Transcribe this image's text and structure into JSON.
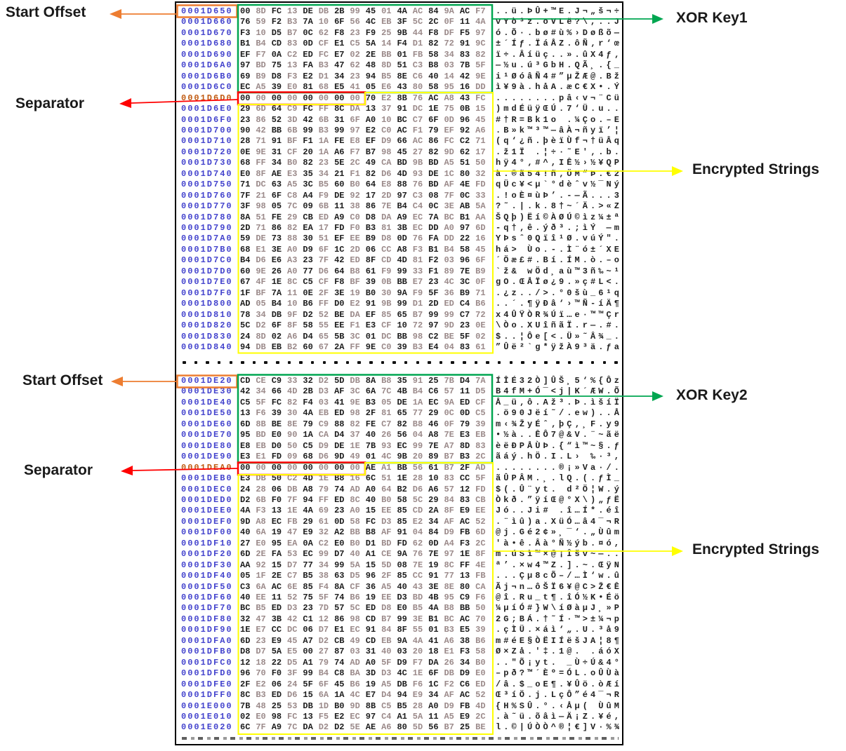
{
  "labels": {
    "start_offset_1": "Start Offset",
    "xor_key_1": "XOR Key1",
    "separator_1": "Separator",
    "encrypted_strings_1": "Encrypted Strings",
    "start_offset_2": "Start Offset",
    "xor_key_2": "XOR Key2",
    "separator_2": "Separator",
    "encrypted_strings_2": "Encrypted Strings"
  },
  "colors": {
    "offset_blue": "#4343cd",
    "offset_orange": "#c05a11",
    "byte_dark": "#1c1c1c",
    "byte_light": "#9b8a8a",
    "box_green": "#00a650",
    "box_red": "#ff0000",
    "box_yellow": "#ffff00",
    "box_orange": "#ed7d31",
    "label_text": "#1a1a1a",
    "panel_border": "#000000"
  },
  "hex_editor": {
    "gap_dots_count": 38,
    "sections": [
      {
        "name": "xor-key1-region",
        "start_offset": "0001D650",
        "separator_row_index": 8,
        "rows": [
          "00 8D FC 13 DE DB 2B 99 45 01 4A AC 84 9A AC F7",
          "76 59 F2 B3 7A 10 6F 56 4C EB 3F 5C 2C 0F 11 4A",
          "F3 10 D5 B7 0C 62 F8 23 F9 25 9B 44 F8 DF F5 97",
          "B1 B4 CD 83 0D CF E1 C5 5A 14 F4 D1 82 72 91 9C",
          "EF F7 0A C2 ED FC E7 02 2E BB 01 FB 58 34 83 82",
          "97 BD 75 13 FA B3 47 62 48 8D 51 C3 B8 03 7B 5F",
          "69 B9 D8 F3 E2 D1 34 23 94 B5 8E C6 40 14 42 9E",
          "EC A5 39 E0 81 68 E5 41 05 E6 43 80 58 95 16 DD",
          "00 00 00 00 00 00 00 00 70 E2 8B 76 AC A8 43 FC",
          "29 6D 64 C9 FC FF 8C DA 13 37 91 DC 1E 75 0B 15",
          "23 86 52 3D 42 6B 31 6F A0 10 BC C7 6F 0D 96 45",
          "90 42 BB 6B 99 B3 99 97 E2 C0 AC F1 79 EF 92 A6",
          "28 71 91 BF F1 1A FE E8 EF D9 66 AC 86 FC C2 71",
          "0E 9E 31 CF 20 1A A6 F7 B7 98 45 27 82 9D 62 17",
          "68 FF 34 B0 82 23 5E 2C 49 CA BD 9B BD A5 51 50",
          "E0 8F AE E3 35 34 21 F1 82 D6 4D 93 DE 1C 80 32",
          "71 DC 63 A5 3C B5 60 B0 64 E8 88 76 BD AF 4E FD",
          "7F 21 6F C8 A4 F9 DE 92 17 2D 97 C3 08 7F 0C 33",
          "3F 98 05 7C 09 6B 11 38 86 7E B4 C4 0C 3E AB 5A",
          "8A 51 FE 29 CB ED A9 C0 D8 DA A9 EC 7A BC B1 AA",
          "2D 71 86 82 EA 17 FD F0 B3 81 3B EC DD A0 97 6D",
          "59 DE 73 88 30 51 EF EE B9 D8 0D 76 FA DD 22 16",
          "68 E1 3E A0 D9 6F 1C 2D 06 CC A8 F3 B1 B4 58 45",
          "B4 D6 E6 A3 23 7F 42 ED 8F CD 4D 81 F2 03 96 6F",
          "60 9E 26 A0 77 D6 64 B8 61 F9 99 33 F1 89 7E B9",
          "67 4F 1E 8C C5 CF F8 BF 39 0B BB E7 23 4C 3C 0F",
          "1F BF 7A 11 0E 2F 3E 19 B0 30 9A F9 5F 36 B9 71",
          "AD 05 B4 10 B6 FF D0 E2 91 9B 99 D1 2D ED C4 B6",
          "78 34 DB 9F D2 52 BE DA EF 85 65 B7 99 99 C7 72",
          "5C D2 6F 8F 58 55 EE F1 E3 CF 10 72 97 9D 23 0E",
          "24 8D 02 A6 D4 65 5B 3C 01 DC BB 98 C2 BE 5F 02",
          "94 DB EB B2 60 67 2A FF 9E C0 39 B3 E4 04 83 61"
        ]
      },
      {
        "name": "xor-key2-region",
        "start_offset": "0001DE20",
        "separator_row_index": 8,
        "rows": [
          "CD CE C9 33 32 D2 5D DB 8A B8 35 91 25 7B D4 7A",
          "42 34 66 4D 2B D3 AF 3C 6A 7C 4B B4 C6 57 11 D5",
          "C5 5F FC 82 F4 03 41 9E B3 05 DE 1A EC 9A ED CF",
          "13 F6 39 30 4A EB ED 98 2F 81 65 77 29 0C 0D C5",
          "6D 8B BE 8E 79 C9 88 82 FE C7 82 B8 46 0F 79 39",
          "95 BD E0 90 1A CA D4 37 40 26 56 04 A8 7E E3 EB",
          "E8 EB D0 50 C5 D9 DE 1E 7B 93 EC 99 7E A7 8D 83",
          "E3 E1 FD 09 68 D6 9D 49 01 4C 9B 20 89 B7 B3 2C",
          "00 00 00 00 00 00 00 00 AE A1 BB 56 61 B7 2F AD",
          "E3 DB 50 C2 4D 1E B8 16 6C 51 1E 28 10 83 CC 5F",
          "24 28 06 DB A8 79 74 AD A0 64 B2 D6 A6 57 12 FD",
          "D2 6B F0 7F 94 FF ED 8C 40 B0 58 5C 29 84 83 CB",
          "4A F3 13 1E 4A 69 23 A0 15 EE 85 CD 2A 8F E9 EE",
          "9D A8 EC FB 29 61 0D 58 FC D3 85 E2 34 AF AC 52",
          "40 6A 19 47 E9 32 A2 BB B8 AF 91 04 84 D9 FB 6D",
          "27 E0 95 EA 0A C2 E0 B0 D1 BD FD 62 0D A4 F3 2C",
          "6D 2E FA 53 EC 99 D7 40 A1 CE 9A 76 7E 97 1E 8F",
          "AA 92 15 D7 77 34 99 5A 15 5D 08 7E 19 8C FF 4E",
          "05 1F 2E C7 B5 38 63 D5 96 2F 85 CC 91 77 13 FB",
          "C3 6A AC 6E 85 F4 8A CF 36 A5 40 43 3E 8E 80 CA",
          "40 EE 11 52 75 5F 74 B6 19 EE D3 BD 4B 95 C9 F6",
          "BC B5 ED D3 23 7D 57 5C ED D8 E0 B5 4A B8 BB 50",
          "32 47 3B 42 C1 12 86 98 CD B7 99 3E B1 BC AC 70",
          "1E E7 CC DC 06 D7 E1 EC 91 84 8F 55 01 B3 E5 39",
          "6D 23 E9 45 A7 D2 CB 49 CD EB 9A 4A 41 A6 38 B6",
          "D8 D7 5A E5 00 27 87 03 31 40 03 20 18 E1 F3 58",
          "12 18 22 D5 A1 79 74 AD A0 5F D9 F7 DA 26 34 B0",
          "96 70 F0 3F 99 B4 C8 BA 3D D3 4C 1E 6F DB D9 E0",
          "2F E2 06 24 5F 6F 45 B6 19 A5 DB F6 1C F2 C6 ED",
          "8C B3 ED D6 15 6A 1A 4C E7 D4 94 E9 34 AF AC 52",
          "7B 48 25 53 DB 1D B0 9D 8B C5 B5 28 A0 D9 FB 4D",
          "02 E0 98 FC 13 F5 E2 EC 97 C4 A1 5A 11 A5 E9 2C",
          "6C 7F A9 7C DA D2 D2 5E AE A6 80 5D 56 B7 25 BE"
        ]
      }
    ]
  }
}
